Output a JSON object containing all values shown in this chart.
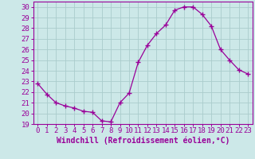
{
  "hours": [
    0,
    1,
    2,
    3,
    4,
    5,
    6,
    7,
    8,
    9,
    10,
    11,
    12,
    13,
    14,
    15,
    16,
    17,
    18,
    19,
    20,
    21,
    22,
    23
  ],
  "values": [
    22.8,
    21.8,
    21.0,
    20.7,
    20.5,
    20.2,
    20.1,
    19.3,
    19.2,
    21.0,
    21.9,
    24.8,
    26.4,
    27.5,
    28.3,
    29.7,
    30.0,
    30.0,
    29.3,
    28.2,
    26.0,
    25.0,
    24.1,
    23.7
  ],
  "line_color": "#990099",
  "marker": "+",
  "marker_size": 4,
  "bg_color": "#cce8e8",
  "grid_color": "#aacccc",
  "xlabel": "Windchill (Refroidissement éolien,°C)",
  "ylim": [
    19,
    30.5
  ],
  "yticks": [
    19,
    20,
    21,
    22,
    23,
    24,
    25,
    26,
    27,
    28,
    29,
    30
  ],
  "xtick_labels": [
    "0",
    "1",
    "2",
    "3",
    "4",
    "5",
    "6",
    "7",
    "8",
    "9",
    "10",
    "11",
    "12",
    "13",
    "14",
    "15",
    "16",
    "17",
    "18",
    "19",
    "20",
    "21",
    "22",
    "23"
  ],
  "tick_color": "#990099",
  "label_color": "#990099",
  "axis_color": "#990099",
  "tick_fontsize": 6.5,
  "xlabel_fontsize": 7.0
}
